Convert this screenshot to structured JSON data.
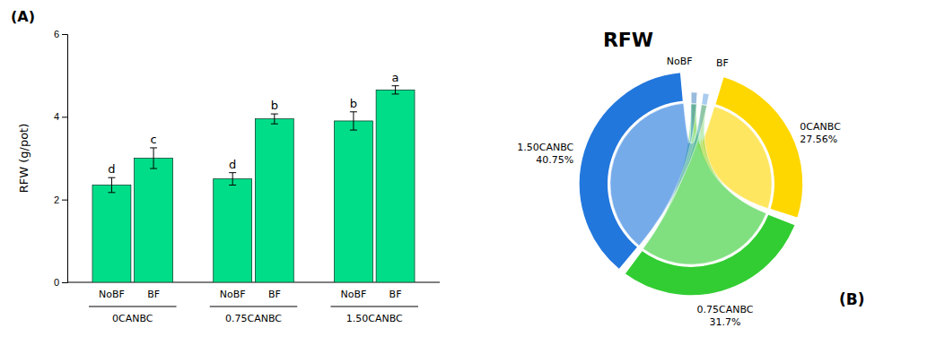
{
  "chart_data": [
    {
      "type": "bar",
      "panel_label": "(A)",
      "categories": [
        "NoBF",
        "BF",
        "NoBF",
        "BF",
        "NoBF",
        "BF"
      ],
      "groups": [
        "0CANBC",
        "0.75CANBC",
        "1.50CANBC"
      ],
      "values": [
        2.35,
        3.0,
        2.5,
        3.95,
        3.9,
        4.65
      ],
      "errors": [
        0.18,
        0.25,
        0.15,
        0.12,
        0.22,
        0.1
      ],
      "annotations": [
        "d",
        "c",
        "d",
        "b",
        "b",
        "a"
      ],
      "color": "#00DD88",
      "ylabel": "RFW (g/pot)",
      "ylim": [
        0,
        6
      ],
      "yticks": [
        0,
        2,
        4,
        6
      ]
    },
    {
      "type": "chord",
      "title": "RFW",
      "panel_label": "(B)",
      "sources": [
        "NoBF",
        "BF"
      ],
      "source_colors": [
        "#99BBDD",
        "#AACCEE"
      ],
      "categories": [
        "0CANBC",
        "0.75CANBC",
        "1.50CANBC"
      ],
      "values": [
        27.56,
        31.7,
        40.75
      ],
      "value_labels": [
        "27.56%",
        "31.7%",
        "40.75%"
      ],
      "colors": [
        "#FFD700",
        "#32CD32",
        "#2277DD"
      ]
    }
  ]
}
